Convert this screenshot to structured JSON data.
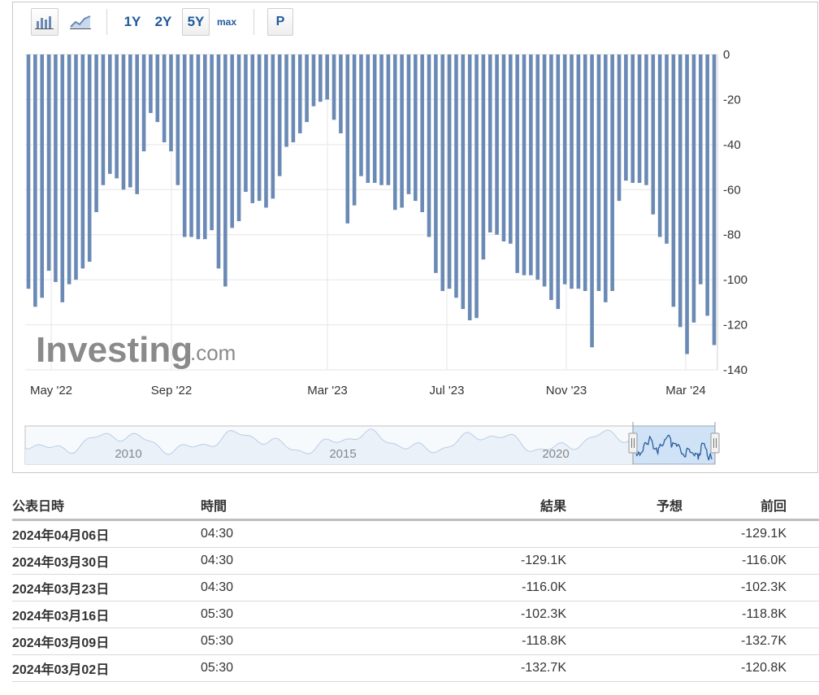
{
  "toolbar": {
    "bar_icon": "bar-chart-icon",
    "line_icon": "line-chart-icon",
    "ranges": [
      "1Y",
      "2Y",
      "5Y",
      "max"
    ],
    "selected_range": "5Y",
    "p_label": "P"
  },
  "chart_data": {
    "type": "bar",
    "y_ticks": [
      0,
      -20,
      -40,
      -60,
      -80,
      -100,
      -120,
      -140
    ],
    "ylim": [
      -140,
      0
    ],
    "x_tick_labels": [
      "May '22",
      "Sep '22",
      "Mar '23",
      "Jul '23",
      "Nov '23",
      "Mar '24"
    ],
    "series_color": "#6a8ab5",
    "values": [
      -104,
      -112,
      -108,
      -96,
      -101,
      -110,
      -102,
      -100,
      -95,
      -92,
      -70,
      -58,
      -53,
      -55,
      -60,
      -59,
      -62,
      -43,
      -26,
      -30,
      -39,
      -43,
      -58,
      -81,
      -81,
      -82,
      -82,
      -78,
      -95,
      -103,
      -77,
      -74,
      -61,
      -66,
      -65,
      -68,
      -64,
      -54,
      -41,
      -39,
      -35,
      -30,
      -23,
      -21,
      -20,
      -29,
      -35,
      -75,
      -67,
      -54,
      -57,
      -57,
      -58,
      -58,
      -69,
      -68,
      -62,
      -65,
      -70,
      -81,
      -97,
      -105,
      -104,
      -108,
      -113,
      -118,
      -117,
      -91,
      -79,
      -80,
      -83,
      -84,
      -97,
      -98,
      -98,
      -100,
      -103,
      -109,
      -113,
      -102,
      -104,
      -104,
      -105,
      -130,
      -105,
      -110,
      -105,
      -65,
      -56,
      -57,
      -57,
      -58,
      -71,
      -81,
      -84,
      -112,
      -121,
      -133,
      -119,
      -102,
      -116,
      -129
    ],
    "watermark": "Investing",
    "watermark_suffix": ".com",
    "navigator_year_labels": [
      "2010",
      "2015",
      "2020"
    ]
  },
  "table": {
    "headers": [
      "公表日時",
      "時間",
      "結果",
      "予想",
      "前回"
    ],
    "rows": [
      {
        "date": "2024年04月06日",
        "time": "04:30",
        "actual": "",
        "forecast": "",
        "previous": "-129.1K"
      },
      {
        "date": "2024年03月30日",
        "time": "04:30",
        "actual": "-129.1K",
        "forecast": "",
        "previous": "-116.0K"
      },
      {
        "date": "2024年03月23日",
        "time": "04:30",
        "actual": "-116.0K",
        "forecast": "",
        "previous": "-102.3K"
      },
      {
        "date": "2024年03月16日",
        "time": "05:30",
        "actual": "-102.3K",
        "forecast": "",
        "previous": "-118.8K"
      },
      {
        "date": "2024年03月09日",
        "time": "05:30",
        "actual": "-118.8K",
        "forecast": "",
        "previous": "-132.7K"
      },
      {
        "date": "2024年03月02日",
        "time": "05:30",
        "actual": "-132.7K",
        "forecast": "",
        "previous": "-120.8K"
      }
    ]
  }
}
